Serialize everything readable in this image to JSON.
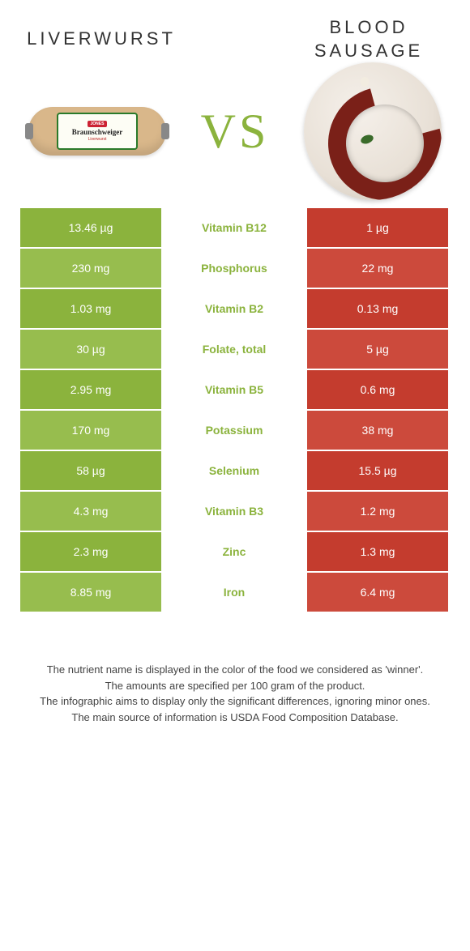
{
  "colors": {
    "left": "#8bb33d",
    "right": "#c43c2e",
    "left_alt": "#97bd4e",
    "right_alt": "#cc4a3c",
    "nutrient_text_winner_left": "#8bb33d",
    "nutrient_text_winner_right": "#c43c2e",
    "background": "#ffffff"
  },
  "foods": {
    "left": {
      "name": "Liverwurst"
    },
    "right": {
      "name": "Blood sausage"
    }
  },
  "vs_label": "VS",
  "nutrients": [
    {
      "name": "Vitamin B12",
      "left": "13.46 µg",
      "right": "1 µg",
      "winner": "left"
    },
    {
      "name": "Phosphorus",
      "left": "230 mg",
      "right": "22 mg",
      "winner": "left"
    },
    {
      "name": "Vitamin B2",
      "left": "1.03 mg",
      "right": "0.13 mg",
      "winner": "left"
    },
    {
      "name": "Folate, total",
      "left": "30 µg",
      "right": "5 µg",
      "winner": "left"
    },
    {
      "name": "Vitamin B5",
      "left": "2.95 mg",
      "right": "0.6 mg",
      "winner": "left"
    },
    {
      "name": "Potassium",
      "left": "170 mg",
      "right": "38 mg",
      "winner": "left"
    },
    {
      "name": "Selenium",
      "left": "58 µg",
      "right": "15.5 µg",
      "winner": "left"
    },
    {
      "name": "Vitamin B3",
      "left": "4.3 mg",
      "right": "1.2 mg",
      "winner": "left"
    },
    {
      "name": "Zinc",
      "left": "2.3 mg",
      "right": "1.3 mg",
      "winner": "left"
    },
    {
      "name": "Iron",
      "left": "8.85 mg",
      "right": "6.4 mg",
      "winner": "left"
    }
  ],
  "footnotes": [
    "The nutrient name is displayed in the color of the food we considered as 'winner'.",
    "The amounts are specified per 100 gram of the product.",
    "The infographic aims to display only the significant differences, ignoring minor ones.",
    "The main source of information is USDA Food Composition Database."
  ]
}
